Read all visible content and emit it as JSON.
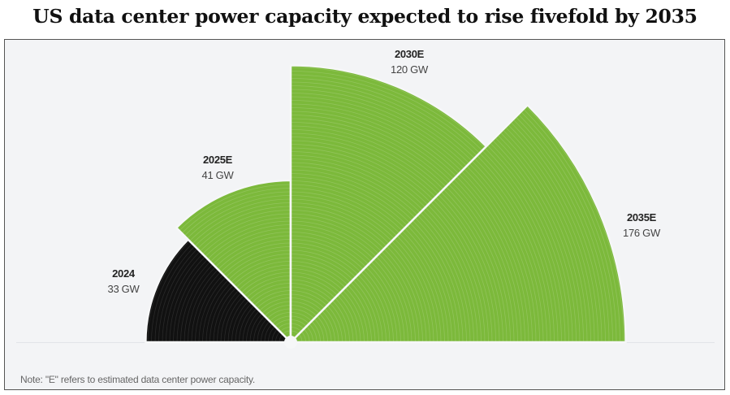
{
  "title": "US data center power capacity expected to rise fivefold by 2035",
  "note": "Note: \"E\" refers to estimated data center power capacity.",
  "chart_data": {
    "type": "polar-area",
    "title": "US data center power capacity expected to rise fivefold by 2035",
    "unit": "GW",
    "categories": [
      "2024",
      "2025E",
      "2030E",
      "2035E"
    ],
    "values": [
      33,
      41,
      120,
      176
    ],
    "value_labels": [
      "33 GW",
      "41 GW",
      "120 GW",
      "176 GW"
    ],
    "colors": [
      "#111111",
      "#7cb93b",
      "#7cb93b",
      "#7cb93b"
    ],
    "grid": false
  }
}
